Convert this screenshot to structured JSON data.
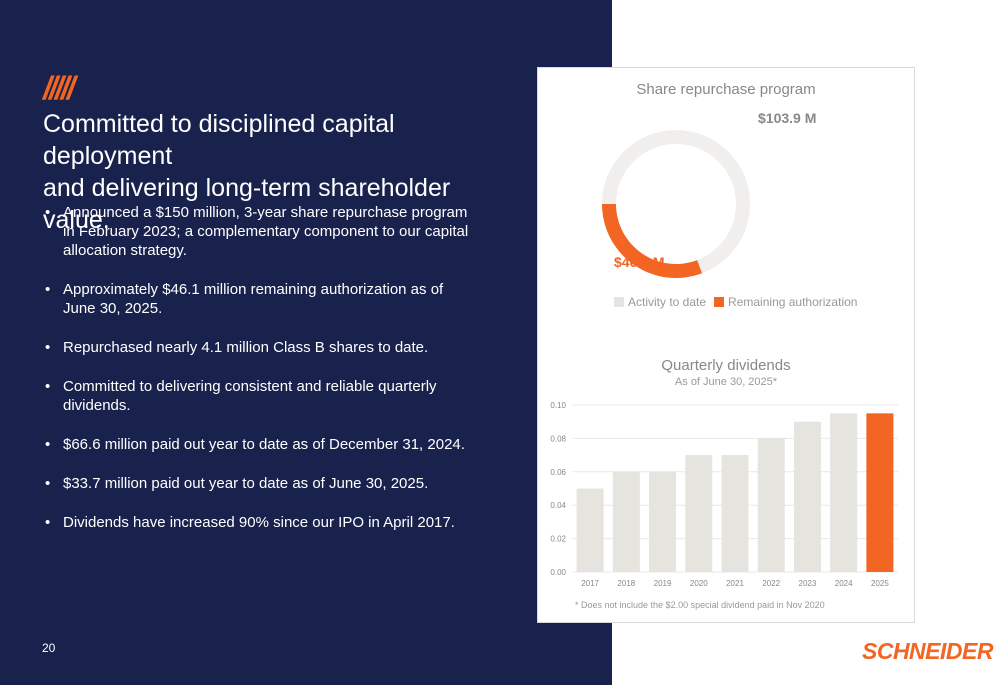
{
  "slide": {
    "slashes": "/////",
    "headline_line1": "Committed to disciplined capital deployment",
    "headline_line2": "and delivering long-term shareholder value.",
    "bullets": [
      {
        "line1": "Announced a $150 million, 3-year share repurchase program",
        "line2": "in February 2023; a complementary component to our capital",
        "line3": "allocation strategy."
      },
      {
        "line1": "Approximately $46.1 million remaining authorization as of",
        "line2": "June 30, 2025."
      },
      {
        "line1": "Repurchased nearly 4.1 million Class B shares to date."
      },
      {
        "line1": "Committed to delivering consistent and reliable quarterly dividends."
      },
      {
        "line1": "$66.6 million paid out year to date as of December 31, 2024."
      },
      {
        "line1": "$33.7 million paid out year to date as of June 30, 2025."
      },
      {
        "line1": "Dividends have increased 90% since our IPO in April 2017."
      }
    ],
    "page_number": "20",
    "logo_text": "SCHNEIDER"
  },
  "chart_data": [
    {
      "type": "pie",
      "title": "Share repurchase program",
      "labels": [
        "Activity to date",
        "Remaining authorization"
      ],
      "values": [
        103.9,
        46.1
      ],
      "value_labels": [
        "$103.9 M",
        "$46.1 M"
      ],
      "colors": [
        "#f0efed",
        "#f26522"
      ],
      "legend": "bottom"
    },
    {
      "type": "bar",
      "title": "Quarterly dividends",
      "subtitle": "As of June 30, 2025*",
      "categories": [
        "2017",
        "2018",
        "2019",
        "2020",
        "2021",
        "2022",
        "2023",
        "2024",
        "2025"
      ],
      "values": [
        0.05,
        0.06,
        0.06,
        0.07,
        0.07,
        0.08,
        0.09,
        0.095,
        0.095
      ],
      "ylim": [
        0,
        0.1
      ],
      "yticks": [
        "0.00",
        "0.02",
        "0.04",
        "0.06",
        "0.08",
        "0.10"
      ],
      "grid": true,
      "bar_color": "#e6e4df",
      "highlight_color": "#f26522",
      "highlight_index": 8,
      "footnote": "* Does not include the $2.00 special dividend paid in Nov 2020"
    }
  ]
}
